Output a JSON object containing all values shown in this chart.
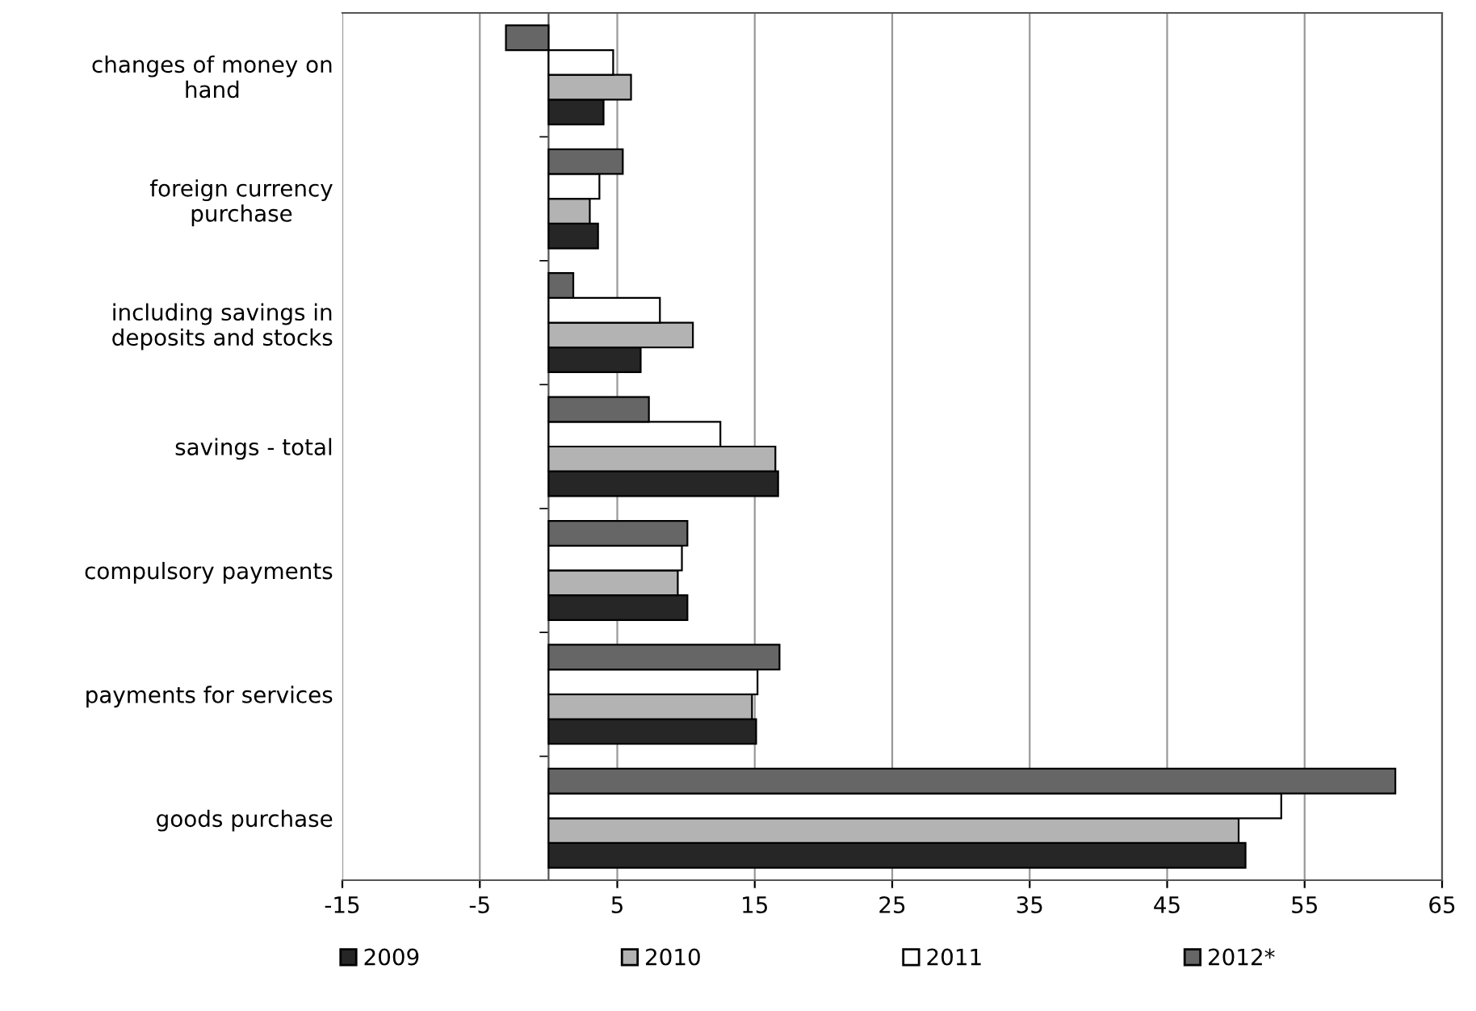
{
  "chart_data": {
    "type": "bar",
    "orientation": "horizontal",
    "categories": [
      "changes of money on\nhand",
      "foreign currency\npurchase",
      "including savings in\ndeposits and stocks",
      "savings - total",
      "compulsory payments",
      "payments for services",
      "goods purchase"
    ],
    "series": [
      {
        "name": "2009",
        "color": "#262626",
        "values": [
          4.0,
          3.6,
          6.7,
          16.7,
          10.1,
          15.1,
          50.7
        ]
      },
      {
        "name": "2010",
        "color": "#b3b3b3",
        "values": [
          6.0,
          3.0,
          10.5,
          16.5,
          9.4,
          14.8,
          50.2
        ]
      },
      {
        "name": "2011",
        "color": "#ffffff",
        "values": [
          4.7,
          3.7,
          8.1,
          12.5,
          9.7,
          15.2,
          53.3
        ]
      },
      {
        "name": "2012*",
        "color": "#666666",
        "values": [
          -3.1,
          5.4,
          1.8,
          7.3,
          10.1,
          16.8,
          61.6
        ]
      }
    ],
    "xlim": [
      -15,
      65
    ],
    "xticks": [
      -15,
      -5,
      5,
      15,
      25,
      35,
      45,
      55,
      65
    ],
    "grid": "x",
    "legend": "bottom"
  }
}
